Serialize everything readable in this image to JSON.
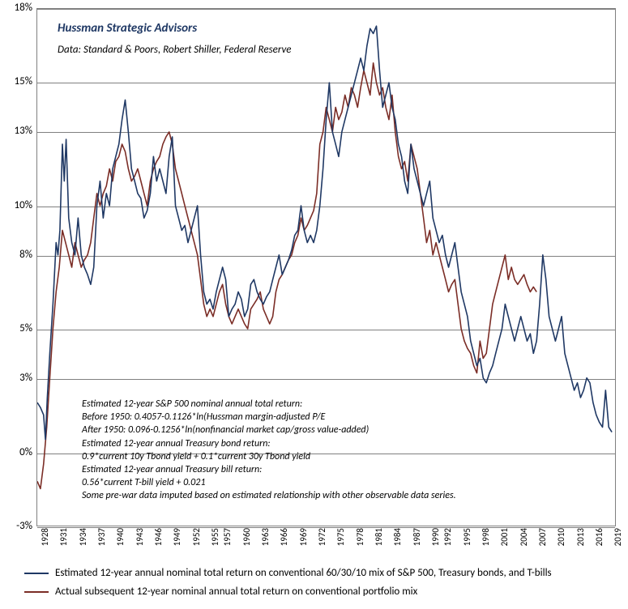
{
  "title": "Hussman Strategic Advisors",
  "subtitle": "Data: Standard & Poors, Robert Shiller, Federal Reserve",
  "formula_lines": [
    "Estimated 12-year S&P 500  nominal annual total return:",
    "Before 1950:  0.4057-0.1126*ln(Hussman  margin-adjusted P/E",
    "After 1950:  0.096-0.1256*ln(nonfinancial market cap/gross value-added)",
    "Estimated 12-year annual Treasury bond return:",
    "0.9*current 10y Tbond yield + 0.1*current  30y Tbond yield",
    "Estimated 12-year annual Treasury bill return:",
    "0.56*current T-bill yield + 0.021",
    "Some pre-war data imputed based on estimated relationship with other observable data series."
  ],
  "legend": {
    "estimated": "Estimated 12-year annual nominal total return on conventional 60/30/10 mix of S&P 500, Treasury bonds, and T-bills",
    "actual": "Actual subsequent 12-year nominal annual total return on conventional portfolio mix"
  },
  "colors": {
    "estimated": "#1f3864",
    "actual": "#7b2d26",
    "grid": "#808080",
    "text": "#000000",
    "title": "#1f3864",
    "background": "#ffffff"
  },
  "chart": {
    "type": "line",
    "xlim": [
      1928,
      2020
    ],
    "ylim": [
      -3,
      18
    ],
    "yticks": [
      -3,
      0,
      3,
      5,
      8,
      10,
      13,
      15,
      18
    ],
    "ytick_labels": [
      "-3%",
      "0%",
      "3%",
      "5%",
      "8%",
      "10%",
      "13%",
      "15%",
      "18%"
    ],
    "xticks": [
      1928,
      1931,
      1934,
      1937,
      1940,
      1943,
      1946,
      1949,
      1952,
      1955,
      1957,
      1960,
      1963,
      1966,
      1969,
      1972,
      1975,
      1978,
      1981,
      1984,
      1987,
      1990,
      1992,
      1995,
      1998,
      2001,
      2004,
      2007,
      2010,
      2013,
      2016,
      2019
    ],
    "line_width": 1.6,
    "title_fontsize": 15,
    "label_fontsize": 13,
    "formula_fontsize": 12,
    "series_estimated": [
      [
        1928,
        2.0
      ],
      [
        1928.5,
        1.8
      ],
      [
        1929,
        1.5
      ],
      [
        1929.3,
        0.5
      ],
      [
        1929.6,
        2.2
      ],
      [
        1930,
        4.0
      ],
      [
        1930.5,
        6.0
      ],
      [
        1931,
        8.5
      ],
      [
        1931.3,
        8.0
      ],
      [
        1931.6,
        9.0
      ],
      [
        1932,
        12.5
      ],
      [
        1932.3,
        11.0
      ],
      [
        1932.6,
        12.7
      ],
      [
        1933,
        9.5
      ],
      [
        1933.5,
        8.5
      ],
      [
        1934,
        8.0
      ],
      [
        1934.5,
        9.5
      ],
      [
        1935,
        8.0
      ],
      [
        1935.5,
        7.5
      ],
      [
        1936,
        7.2
      ],
      [
        1936.5,
        6.8
      ],
      [
        1937,
        7.5
      ],
      [
        1937.5,
        10.0
      ],
      [
        1938,
        11.0
      ],
      [
        1938.5,
        9.5
      ],
      [
        1939,
        10.5
      ],
      [
        1939.5,
        10.0
      ],
      [
        1940,
        11.5
      ],
      [
        1940.5,
        12.0
      ],
      [
        1941,
        12.5
      ],
      [
        1941.5,
        13.5
      ],
      [
        1942,
        14.3
      ],
      [
        1942.5,
        13.0
      ],
      [
        1943,
        11.5
      ],
      [
        1943.5,
        11.0
      ],
      [
        1944,
        10.5
      ],
      [
        1944.5,
        10.3
      ],
      [
        1945,
        9.5
      ],
      [
        1945.5,
        9.8
      ],
      [
        1946,
        10.5
      ],
      [
        1946.5,
        12.0
      ],
      [
        1947,
        11.0
      ],
      [
        1947.5,
        11.5
      ],
      [
        1948,
        11.0
      ],
      [
        1948.5,
        10.5
      ],
      [
        1949,
        12.0
      ],
      [
        1949.5,
        12.8
      ],
      [
        1950,
        10.0
      ],
      [
        1950.5,
        9.5
      ],
      [
        1951,
        9.0
      ],
      [
        1951.5,
        9.2
      ],
      [
        1952,
        8.5
      ],
      [
        1952.5,
        9.0
      ],
      [
        1953,
        9.5
      ],
      [
        1953.5,
        10.0
      ],
      [
        1954,
        8.0
      ],
      [
        1954.5,
        6.5
      ],
      [
        1955,
        6.0
      ],
      [
        1955.5,
        6.2
      ],
      [
        1956,
        5.8
      ],
      [
        1956.5,
        6.5
      ],
      [
        1957,
        7.0
      ],
      [
        1957.5,
        7.5
      ],
      [
        1958,
        7.0
      ],
      [
        1958.5,
        5.5
      ],
      [
        1959,
        5.8
      ],
      [
        1959.5,
        6.0
      ],
      [
        1960,
        6.5
      ],
      [
        1960.5,
        6.2
      ],
      [
        1961,
        5.5
      ],
      [
        1961.5,
        5.8
      ],
      [
        1962,
        6.8
      ],
      [
        1962.5,
        7.0
      ],
      [
        1963,
        6.5
      ],
      [
        1963.5,
        6.2
      ],
      [
        1964,
        6.0
      ],
      [
        1964.5,
        6.3
      ],
      [
        1965,
        6.5
      ],
      [
        1965.5,
        7.0
      ],
      [
        1966,
        7.5
      ],
      [
        1966.5,
        8.0
      ],
      [
        1967,
        7.2
      ],
      [
        1967.5,
        7.5
      ],
      [
        1968,
        7.8
      ],
      [
        1968.5,
        8.2
      ],
      [
        1969,
        8.8
      ],
      [
        1969.5,
        9.0
      ],
      [
        1970,
        10.0
      ],
      [
        1970.5,
        9.0
      ],
      [
        1971,
        8.5
      ],
      [
        1971.5,
        8.8
      ],
      [
        1972,
        8.5
      ],
      [
        1972.5,
        9.0
      ],
      [
        1973,
        10.0
      ],
      [
        1973.5,
        11.5
      ],
      [
        1974,
        13.5
      ],
      [
        1974.5,
        15.0
      ],
      [
        1975,
        13.0
      ],
      [
        1975.5,
        12.5
      ],
      [
        1976,
        12.0
      ],
      [
        1976.5,
        13.0
      ],
      [
        1977,
        13.5
      ],
      [
        1977.5,
        14.0
      ],
      [
        1978,
        14.5
      ],
      [
        1978.5,
        15.0
      ],
      [
        1979,
        15.5
      ],
      [
        1979.5,
        16.0
      ],
      [
        1980,
        15.5
      ],
      [
        1980.5,
        16.5
      ],
      [
        1981,
        17.2
      ],
      [
        1981.5,
        17.0
      ],
      [
        1982,
        17.3
      ],
      [
        1982.5,
        15.5
      ],
      [
        1983,
        14.0
      ],
      [
        1983.5,
        14.5
      ],
      [
        1984,
        15.0
      ],
      [
        1984.5,
        14.0
      ],
      [
        1985,
        13.5
      ],
      [
        1985.5,
        12.5
      ],
      [
        1986,
        12.0
      ],
      [
        1986.5,
        11.0
      ],
      [
        1987,
        10.5
      ],
      [
        1987.5,
        12.5
      ],
      [
        1988,
        11.5
      ],
      [
        1988.5,
        11.0
      ],
      [
        1989,
        10.5
      ],
      [
        1989.5,
        10.0
      ],
      [
        1990,
        10.5
      ],
      [
        1990.5,
        11.0
      ],
      [
        1991,
        9.5
      ],
      [
        1991.5,
        9.0
      ],
      [
        1992,
        8.5
      ],
      [
        1992.5,
        8.8
      ],
      [
        1993,
        8.0
      ],
      [
        1993.5,
        7.5
      ],
      [
        1994,
        8.0
      ],
      [
        1994.5,
        8.5
      ],
      [
        1995,
        7.5
      ],
      [
        1995.5,
        6.5
      ],
      [
        1996,
        6.0
      ],
      [
        1996.5,
        5.5
      ],
      [
        1997,
        4.5
      ],
      [
        1997.5,
        4.0
      ],
      [
        1998,
        3.5
      ],
      [
        1998.5,
        3.8
      ],
      [
        1999,
        3.0
      ],
      [
        1999.5,
        2.8
      ],
      [
        2000,
        3.2
      ],
      [
        2000.5,
        3.5
      ],
      [
        2001,
        4.0
      ],
      [
        2001.5,
        4.5
      ],
      [
        2002,
        5.0
      ],
      [
        2002.5,
        6.0
      ],
      [
        2003,
        5.5
      ],
      [
        2003.5,
        5.0
      ],
      [
        2004,
        4.5
      ],
      [
        2004.5,
        5.0
      ],
      [
        2005,
        5.5
      ],
      [
        2005.5,
        5.0
      ],
      [
        2006,
        4.5
      ],
      [
        2006.5,
        4.8
      ],
      [
        2007,
        4.0
      ],
      [
        2007.5,
        4.5
      ],
      [
        2008,
        6.0
      ],
      [
        2008.5,
        8.0
      ],
      [
        2009,
        7.0
      ],
      [
        2009.5,
        5.5
      ],
      [
        2010,
        5.0
      ],
      [
        2010.5,
        4.5
      ],
      [
        2011,
        5.0
      ],
      [
        2011.5,
        5.5
      ],
      [
        2012,
        4.0
      ],
      [
        2012.5,
        3.5
      ],
      [
        2013,
        3.0
      ],
      [
        2013.5,
        2.5
      ],
      [
        2014,
        2.8
      ],
      [
        2014.5,
        2.2
      ],
      [
        2015,
        2.5
      ],
      [
        2015.5,
        3.0
      ],
      [
        2016,
        2.8
      ],
      [
        2016.5,
        2.0
      ],
      [
        2017,
        1.5
      ],
      [
        2017.5,
        1.2
      ],
      [
        2018,
        1.0
      ],
      [
        2018.5,
        2.5
      ],
      [
        2019,
        1.0
      ],
      [
        2019.5,
        0.8
      ]
    ],
    "series_actual": [
      [
        1928,
        -1.2
      ],
      [
        1928.5,
        -1.5
      ],
      [
        1929,
        -0.5
      ],
      [
        1929.5,
        1.0
      ],
      [
        1930,
        3.0
      ],
      [
        1930.5,
        5.0
      ],
      [
        1931,
        6.5
      ],
      [
        1931.5,
        7.5
      ],
      [
        1932,
        9.0
      ],
      [
        1932.5,
        8.5
      ],
      [
        1933,
        8.0
      ],
      [
        1933.5,
        7.5
      ],
      [
        1934,
        8.5
      ],
      [
        1934.5,
        8.0
      ],
      [
        1935,
        7.5
      ],
      [
        1935.5,
        7.8
      ],
      [
        1936,
        8.0
      ],
      [
        1936.5,
        8.5
      ],
      [
        1937,
        9.5
      ],
      [
        1937.5,
        10.5
      ],
      [
        1938,
        10.0
      ],
      [
        1938.5,
        10.5
      ],
      [
        1939,
        10.8
      ],
      [
        1939.5,
        11.5
      ],
      [
        1940,
        11.0
      ],
      [
        1940.5,
        11.8
      ],
      [
        1941,
        12.0
      ],
      [
        1941.5,
        12.5
      ],
      [
        1942,
        12.2
      ],
      [
        1942.5,
        11.5
      ],
      [
        1943,
        11.0
      ],
      [
        1943.5,
        11.2
      ],
      [
        1944,
        11.5
      ],
      [
        1944.5,
        11.0
      ],
      [
        1945,
        10.5
      ],
      [
        1945.5,
        10.0
      ],
      [
        1946,
        11.0
      ],
      [
        1946.5,
        11.5
      ],
      [
        1947,
        11.8
      ],
      [
        1947.5,
        12.0
      ],
      [
        1948,
        12.5
      ],
      [
        1948.5,
        12.8
      ],
      [
        1949,
        13.0
      ],
      [
        1949.5,
        12.5
      ],
      [
        1950,
        11.5
      ],
      [
        1950.5,
        11.0
      ],
      [
        1951,
        10.5
      ],
      [
        1951.5,
        10.0
      ],
      [
        1952,
        9.5
      ],
      [
        1952.5,
        9.0
      ],
      [
        1953,
        8.5
      ],
      [
        1953.5,
        8.0
      ],
      [
        1954,
        7.0
      ],
      [
        1954.5,
        6.0
      ],
      [
        1955,
        5.5
      ],
      [
        1955.5,
        5.8
      ],
      [
        1956,
        5.5
      ],
      [
        1956.5,
        6.0
      ],
      [
        1957,
        6.5
      ],
      [
        1957.5,
        6.8
      ],
      [
        1958,
        6.0
      ],
      [
        1958.5,
        5.5
      ],
      [
        1959,
        5.2
      ],
      [
        1959.5,
        5.5
      ],
      [
        1960,
        5.8
      ],
      [
        1960.5,
        5.5
      ],
      [
        1961,
        5.2
      ],
      [
        1961.5,
        5.0
      ],
      [
        1962,
        5.8
      ],
      [
        1962.5,
        6.0
      ],
      [
        1963,
        6.2
      ],
      [
        1963.5,
        6.5
      ],
      [
        1964,
        5.8
      ],
      [
        1964.5,
        5.5
      ],
      [
        1965,
        5.2
      ],
      [
        1965.5,
        5.5
      ],
      [
        1966,
        6.5
      ],
      [
        1966.5,
        7.0
      ],
      [
        1967,
        7.2
      ],
      [
        1967.5,
        7.5
      ],
      [
        1968,
        7.8
      ],
      [
        1968.5,
        8.0
      ],
      [
        1969,
        8.5
      ],
      [
        1969.5,
        8.8
      ],
      [
        1970,
        9.5
      ],
      [
        1970.5,
        9.0
      ],
      [
        1971,
        9.2
      ],
      [
        1971.5,
        9.5
      ],
      [
        1972,
        9.8
      ],
      [
        1972.5,
        10.5
      ],
      [
        1973,
        12.5
      ],
      [
        1973.5,
        13.0
      ],
      [
        1974,
        14.0
      ],
      [
        1974.5,
        13.5
      ],
      [
        1975,
        13.0
      ],
      [
        1975.5,
        14.0
      ],
      [
        1976,
        13.5
      ],
      [
        1976.5,
        13.8
      ],
      [
        1977,
        14.5
      ],
      [
        1977.5,
        14.0
      ],
      [
        1978,
        14.8
      ],
      [
        1978.5,
        14.5
      ],
      [
        1979,
        14.0
      ],
      [
        1979.5,
        14.8
      ],
      [
        1980,
        15.5
      ],
      [
        1980.5,
        15.0
      ],
      [
        1981,
        14.5
      ],
      [
        1981.5,
        15.8
      ],
      [
        1982,
        15.0
      ],
      [
        1982.5,
        14.5
      ],
      [
        1983,
        14.8
      ],
      [
        1983.5,
        14.0
      ],
      [
        1984,
        13.5
      ],
      [
        1984.5,
        14.5
      ],
      [
        1985,
        13.0
      ],
      [
        1985.5,
        12.0
      ],
      [
        1986,
        11.5
      ],
      [
        1986.5,
        11.8
      ],
      [
        1987,
        11.0
      ],
      [
        1987.5,
        12.5
      ],
      [
        1988,
        12.0
      ],
      [
        1988.5,
        11.5
      ],
      [
        1989,
        10.5
      ],
      [
        1989.5,
        9.5
      ],
      [
        1990,
        8.5
      ],
      [
        1990.5,
        9.0
      ],
      [
        1991,
        8.0
      ],
      [
        1991.5,
        8.5
      ],
      [
        1992,
        8.0
      ],
      [
        1992.5,
        7.5
      ],
      [
        1993,
        7.0
      ],
      [
        1993.5,
        6.5
      ],
      [
        1994,
        6.8
      ],
      [
        1994.5,
        7.0
      ],
      [
        1995,
        6.0
      ],
      [
        1995.5,
        5.0
      ],
      [
        1996,
        4.5
      ],
      [
        1996.5,
        4.2
      ],
      [
        1997,
        4.0
      ],
      [
        1997.5,
        3.5
      ],
      [
        1998,
        3.2
      ],
      [
        1998.5,
        4.5
      ],
      [
        1999,
        3.8
      ],
      [
        1999.5,
        4.0
      ],
      [
        2000,
        5.0
      ],
      [
        2000.5,
        6.0
      ],
      [
        2001,
        6.5
      ],
      [
        2001.5,
        7.0
      ],
      [
        2002,
        7.5
      ],
      [
        2002.5,
        8.0
      ],
      [
        2003,
        7.0
      ],
      [
        2003.5,
        7.5
      ],
      [
        2004,
        7.0
      ],
      [
        2004.5,
        6.8
      ],
      [
        2005,
        7.0
      ],
      [
        2005.5,
        7.2
      ],
      [
        2006,
        6.8
      ],
      [
        2006.5,
        6.5
      ],
      [
        2007,
        6.7
      ],
      [
        2007.5,
        6.5
      ]
    ]
  }
}
